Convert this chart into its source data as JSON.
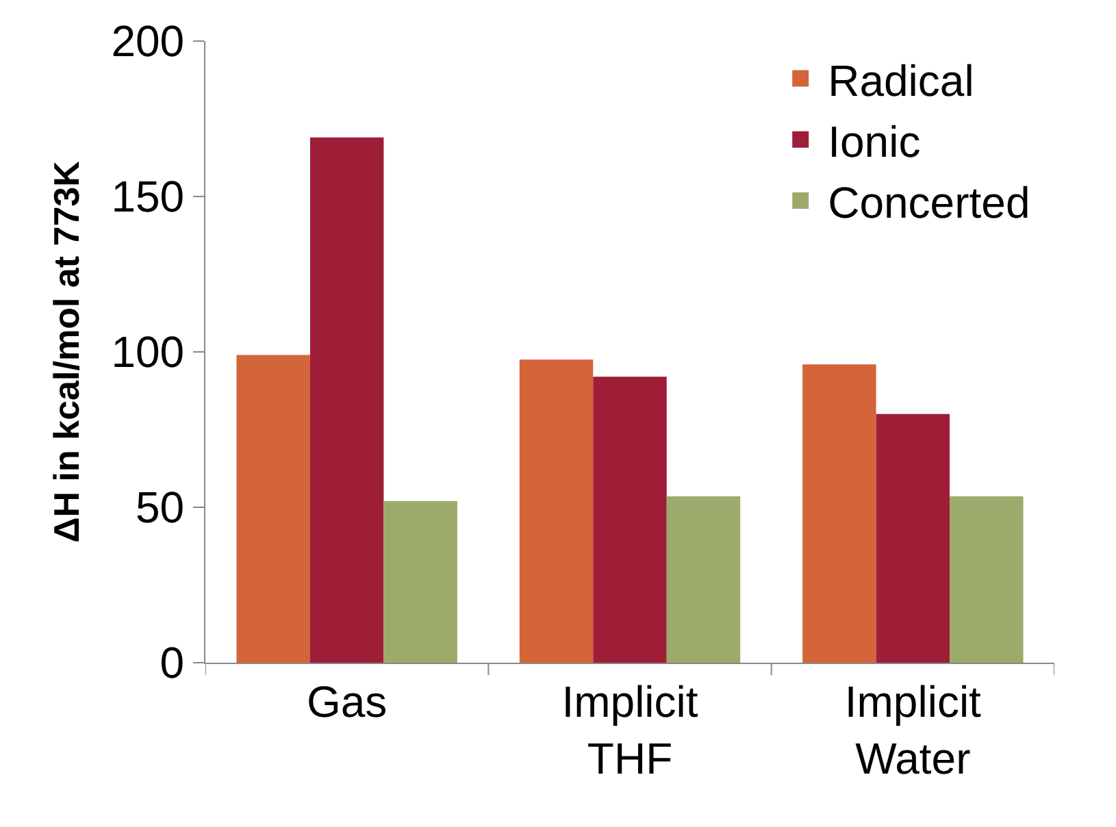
{
  "chart_data": {
    "type": "bar",
    "ylabel": "ΔH in kcal/mol at 773K",
    "categories": [
      "Gas",
      "Implicit THF",
      "Implicit Water"
    ],
    "series": [
      {
        "name": "Radical",
        "color": "#d4643a",
        "values": [
          99,
          97.5,
          96
        ]
      },
      {
        "name": "Ionic",
        "color": "#9e1e38",
        "values": [
          169,
          92,
          80
        ]
      },
      {
        "name": "Concerted",
        "color": "#9caa6b",
        "values": [
          52,
          53.5,
          53.5
        ]
      }
    ],
    "ylim": [
      0,
      200
    ],
    "yticks": [
      0,
      50,
      100,
      150,
      200
    ],
    "legend": "top right"
  }
}
